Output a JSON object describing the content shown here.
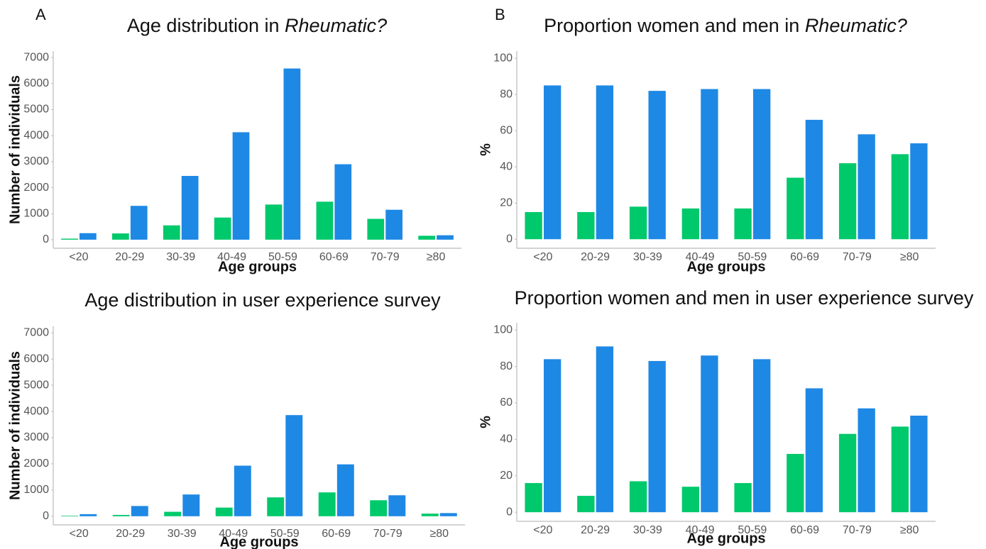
{
  "chart_data": [
    {
      "type": "bar",
      "panel": "A",
      "title": [
        "Age distribution in ",
        "Rheumatic?"
      ],
      "title_italic": [
        false,
        true
      ],
      "xlabel": "Age groups",
      "ylabel": "Number of individuals",
      "categories": [
        "<20",
        "20-29",
        "30-39",
        "40-49",
        "50-59",
        "60-69",
        "70-79",
        "≥80"
      ],
      "series": [
        {
          "color": "#00c96b",
          "values": [
            40,
            240,
            550,
            850,
            1350,
            1460,
            800,
            150
          ]
        },
        {
          "color": "#1e88e5",
          "values": [
            250,
            1300,
            2450,
            4130,
            6580,
            2900,
            1150,
            170
          ]
        }
      ],
      "ylim": [
        -330,
        7250
      ],
      "yticks": [
        0,
        1000,
        2000,
        3000,
        4000,
        5000,
        6000,
        7000
      ]
    },
    {
      "type": "bar",
      "panel": "B",
      "title": [
        "Proportion women and men in ",
        "Rheumatic?"
      ],
      "title_italic": [
        false,
        true
      ],
      "xlabel": "Age groups",
      "ylabel": "%",
      "categories": [
        "<20",
        "20-29",
        "30-39",
        "40-49",
        "50-59",
        "60-69",
        "70-79",
        "≥80"
      ],
      "series": [
        {
          "color": "#00c96b",
          "values": [
            15,
            15,
            18,
            17,
            17,
            34,
            42,
            47
          ]
        },
        {
          "color": "#1e88e5",
          "values": [
            85,
            85,
            82,
            83,
            83,
            66,
            58,
            53
          ]
        }
      ],
      "ylim": [
        -5,
        104
      ],
      "yticks": [
        0,
        20,
        40,
        60,
        80,
        100
      ]
    },
    {
      "type": "bar",
      "title": [
        "Age distribution in user experience survey"
      ],
      "title_italic": [
        false
      ],
      "xlabel": "Age groups",
      "ylabel": "Number of individuals",
      "categories": [
        "<20",
        "20-29",
        "30-39",
        "40-49",
        "50-59",
        "60-69",
        "70-79",
        "≥80"
      ],
      "series": [
        {
          "color": "#00c96b",
          "values": [
            20,
            50,
            170,
            330,
            720,
            910,
            610,
            100
          ]
        },
        {
          "color": "#1e88e5",
          "values": [
            80,
            390,
            830,
            1930,
            3860,
            1980,
            800,
            120
          ]
        }
      ],
      "ylim": [
        -330,
        7250
      ],
      "yticks": [
        0,
        1000,
        2000,
        3000,
        4000,
        5000,
        6000,
        7000
      ]
    },
    {
      "type": "bar",
      "title": [
        "Proportion women and men in user experience survey"
      ],
      "title_italic": [
        false
      ],
      "xlabel": "Age groups",
      "ylabel": "%",
      "categories": [
        "<20",
        "20-29",
        "30-39",
        "40-49",
        "50-59",
        "60-69",
        "70-79",
        "≥80"
      ],
      "series": [
        {
          "color": "#00c96b",
          "values": [
            16,
            9,
            17,
            14,
            16,
            32,
            43,
            47
          ]
        },
        {
          "color": "#1e88e5",
          "values": [
            84,
            91,
            83,
            86,
            84,
            68,
            57,
            53
          ]
        }
      ],
      "ylim": [
        -5,
        104
      ],
      "yticks": [
        0,
        20,
        40,
        60,
        80,
        100
      ]
    }
  ]
}
